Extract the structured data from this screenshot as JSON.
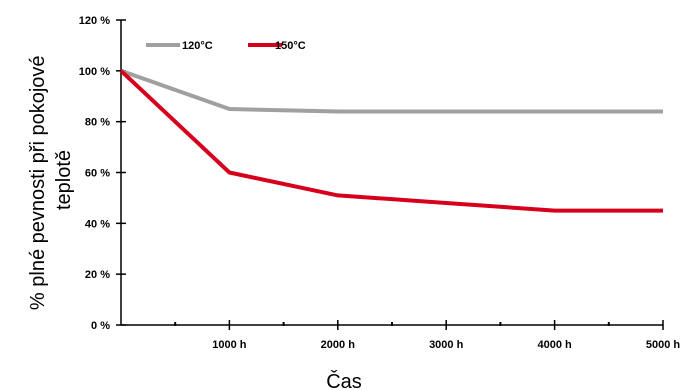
{
  "chart_data": {
    "type": "line",
    "title": "",
    "xlabel": "Čas",
    "ylabel_line1": "% plné pevnosti při pokojové",
    "ylabel_line2": "teplotě",
    "x_ticks": [
      {
        "value": 1000,
        "label": "1000 h"
      },
      {
        "value": 2000,
        "label": "2000 h"
      },
      {
        "value": 3000,
        "label": "3000 h"
      },
      {
        "value": 4000,
        "label": "4000 h"
      },
      {
        "value": 5000,
        "label": "5000 h"
      }
    ],
    "y_ticks": [
      {
        "value": 0,
        "label": "0 %"
      },
      {
        "value": 20,
        "label": "20 %"
      },
      {
        "value": 40,
        "label": "40 %"
      },
      {
        "value": 60,
        "label": "60 %"
      },
      {
        "value": 80,
        "label": "80 %"
      },
      {
        "value": 100,
        "label": "100 %"
      },
      {
        "value": 120,
        "label": "120 %"
      }
    ],
    "xlim": [
      0,
      5000
    ],
    "ylim": [
      0,
      120
    ],
    "grid": false,
    "legend_position": "top-left",
    "series": [
      {
        "name": "120°C",
        "color": "#a0a0a0",
        "x": [
          0,
          1000,
          2000,
          3000,
          4000,
          5000
        ],
        "y": [
          100,
          85,
          84,
          84,
          84,
          84
        ]
      },
      {
        "name": "150°C",
        "color": "#d6001c",
        "x": [
          0,
          1000,
          2000,
          3000,
          4000,
          5000
        ],
        "y": [
          100,
          60,
          51,
          48,
          45,
          45
        ]
      }
    ]
  }
}
